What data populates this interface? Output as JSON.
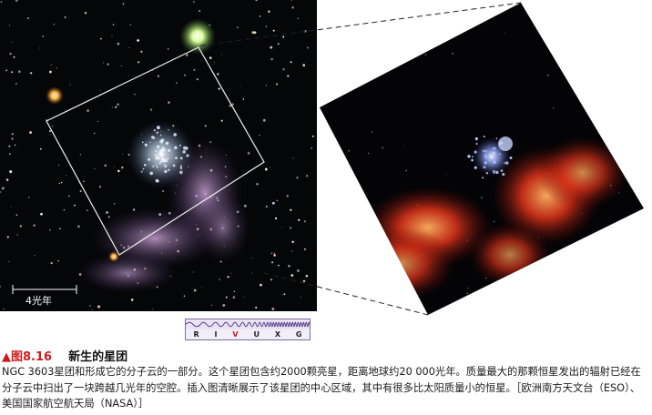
{
  "figure": {
    "scale_bar_label": "4光年",
    "spectrum": {
      "bands": [
        "R",
        "I",
        "V",
        "U",
        "X",
        "G"
      ],
      "active_band": "V",
      "active_color": "#d0191c"
    }
  },
  "caption": {
    "marker": "▲",
    "figure_number": "图8.16",
    "figure_title": "新生的星团",
    "text": "NGC 3603星团和形成它的分子云的一部分。这个星团包含约2000颗亮星，距离地球约20 000光年。质量最大的那颗恒星发出的辐射已经在分子云中扫出了一块跨越几光年的空腔。插入图清晰展示了该星团的中心区域，其中有很多比太阳质量小的恒星。［欧洲南方天文台（ESO）、美国国家航空航天局（NASA）］"
  }
}
